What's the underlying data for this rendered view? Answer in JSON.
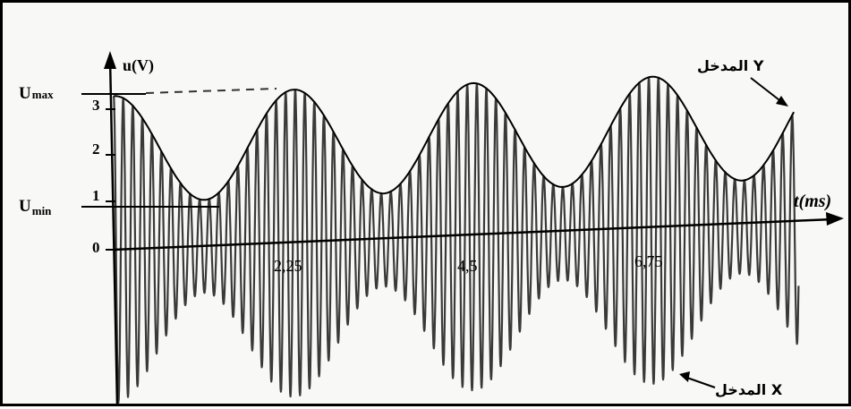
{
  "chart_data": {
    "type": "line",
    "title": "",
    "ylabel": "u(V)",
    "xlabel": "t(ms)",
    "ylim": [
      -3.5,
      3.6
    ],
    "xlim": [
      0,
      8.0
    ],
    "y_ticks": [
      "0",
      "1",
      "2",
      "3"
    ],
    "x_marks": [
      "2,25",
      "4,5",
      "6,75"
    ],
    "x_mark_values": [
      2.25,
      4.5,
      6.75
    ],
    "levels": {
      "U_max": {
        "label": "U",
        "sub": "max",
        "value": 3.2
      },
      "U_min": {
        "label": "U",
        "sub": "min",
        "value": 0.85
      }
    },
    "series": [
      {
        "name": "المدخل Y",
        "kind": "envelope",
        "period_ms": 2.25,
        "min": 1.0,
        "max": 3.3
      },
      {
        "name": "المدخل X",
        "kind": "modulated",
        "carrier_period_ms": 0.12,
        "period_ms": 2.25
      }
    ],
    "grid": false
  },
  "colors": {
    "ink": "#000000",
    "signal": "#3a3a3a",
    "paper": "#f8f8f6",
    "dash": "#333333"
  }
}
